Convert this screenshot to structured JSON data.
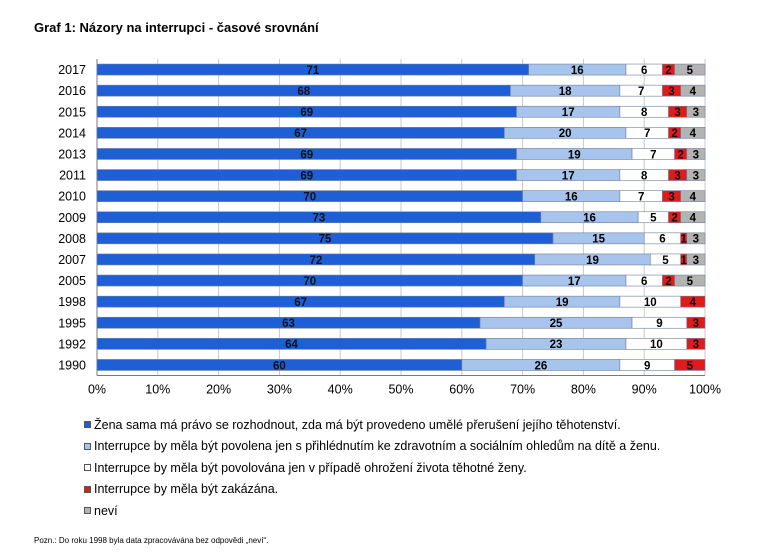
{
  "title": "Graf 1: Názory na interrupci - časové srovnání",
  "footnote": "Pozn.: Do roku 1998 byla data zpracovávána bez odpovědi „neví“.",
  "colors": {
    "s0": "#1f5fd6",
    "s1": "#a7c4ec",
    "s2": "#ffffff",
    "s3": "#e01b1b",
    "s4": "#b3b3b3",
    "grid": "#c8c8c8",
    "border": "#7a7a7a"
  },
  "chart_data": {
    "type": "bar",
    "orientation": "horizontal",
    "stacked": "percent",
    "categories": [
      "2017",
      "2016",
      "2015",
      "2014",
      "2013",
      "2011",
      "2010",
      "2009",
      "2008",
      "2007",
      "2005",
      "1998",
      "1995",
      "1992",
      "1990"
    ],
    "series": [
      {
        "name": "Žena sama má právo se rozhodnout, zda má být provedeno umělé přerušení jejího těhotenství.",
        "values": [
          71,
          68,
          69,
          67,
          69,
          69,
          70,
          73,
          75,
          72,
          70,
          67,
          63,
          64,
          60
        ]
      },
      {
        "name": "Interrupce by měla být povolena jen s přihlédnutím ke zdravotním a sociálním ohledům na dítě a ženu.",
        "values": [
          16,
          18,
          17,
          20,
          19,
          17,
          16,
          16,
          15,
          19,
          17,
          19,
          25,
          23,
          26
        ]
      },
      {
        "name": "Interrupce by měla být povolována jen v případě ohrožení života těhotné ženy.",
        "values": [
          6,
          7,
          8,
          7,
          7,
          8,
          7,
          5,
          6,
          5,
          6,
          10,
          9,
          10,
          9
        ]
      },
      {
        "name": "Interrupce by měla být zakázána.",
        "values": [
          2,
          3,
          3,
          2,
          2,
          3,
          3,
          2,
          1,
          1,
          2,
          4,
          3,
          3,
          5
        ]
      },
      {
        "name": "neví",
        "values": [
          5,
          4,
          3,
          4,
          3,
          3,
          4,
          4,
          3,
          3,
          5,
          null,
          null,
          null,
          null
        ]
      }
    ],
    "xticks": [
      "0%",
      "10%",
      "20%",
      "30%",
      "40%",
      "50%",
      "60%",
      "70%",
      "80%",
      "90%",
      "100%"
    ],
    "xlim": [
      0,
      100
    ],
    "grid": "vertical",
    "legend": "bottom"
  }
}
